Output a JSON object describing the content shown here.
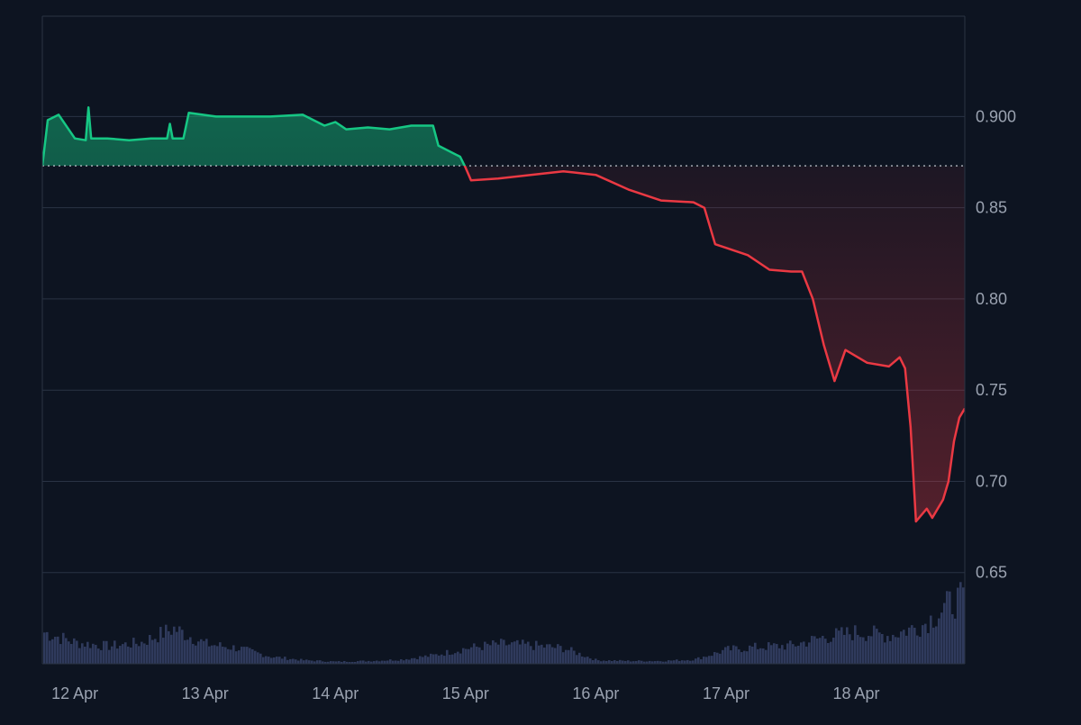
{
  "colors": {
    "background": "#0d1421",
    "grid": "#2a3344",
    "axis_text": "#9aa2b0",
    "up": "#16c784",
    "down": "#ea3943",
    "baseline": "#c9ced6",
    "volume": "#2f3a5c"
  },
  "chart_data": {
    "type": "area",
    "title": "",
    "xlabel": "",
    "ylabel": "",
    "x_range": [
      "2024-04-11 18:00",
      "2024-04-18 20:00"
    ],
    "y_range": [
      0.6,
      0.955
    ],
    "y_ticks": [
      0.65,
      0.7,
      0.75,
      0.8,
      0.85,
      0.9
    ],
    "y_tick_labels": [
      "0.65",
      "0.70",
      "0.75",
      "0.80",
      "0.85",
      "0.900"
    ],
    "x_ticks": [
      "2024-04-12",
      "2024-04-13",
      "2024-04-14",
      "2024-04-15",
      "2024-04-16",
      "2024-04-17",
      "2024-04-18"
    ],
    "x_tick_labels": [
      "12 Apr",
      "13 Apr",
      "14 Apr",
      "15 Apr",
      "16 Apr",
      "17 Apr",
      "18 Apr"
    ],
    "y_axis_position": "right",
    "grid": "horizontal",
    "baseline": 0.873,
    "price_series": {
      "x": [
        "2024-04-11 18:00",
        "2024-04-11 19:00",
        "2024-04-11 21:00",
        "2024-04-12 00:00",
        "2024-04-12 02:00",
        "2024-04-12 02:30",
        "2024-04-12 03:00",
        "2024-04-12 06:00",
        "2024-04-12 10:00",
        "2024-04-12 14:00",
        "2024-04-12 17:00",
        "2024-04-12 17:30",
        "2024-04-12 18:00",
        "2024-04-12 20:00",
        "2024-04-12 21:00",
        "2024-04-13 02:00",
        "2024-04-13 06:00",
        "2024-04-13 12:00",
        "2024-04-13 18:00",
        "2024-04-13 22:00",
        "2024-04-14 00:00",
        "2024-04-14 02:00",
        "2024-04-14 06:00",
        "2024-04-14 10:00",
        "2024-04-14 14:00",
        "2024-04-14 18:00",
        "2024-04-14 19:00",
        "2024-04-14 23:00",
        "2024-04-15 00:00",
        "2024-04-15 01:00",
        "2024-04-15 06:00",
        "2024-04-15 12:00",
        "2024-04-15 18:00",
        "2024-04-16 00:00",
        "2024-04-16 06:00",
        "2024-04-16 12:00",
        "2024-04-16 18:00",
        "2024-04-16 20:00",
        "2024-04-16 22:00",
        "2024-04-17 00:00",
        "2024-04-17 04:00",
        "2024-04-17 08:00",
        "2024-04-17 12:00",
        "2024-04-17 14:00",
        "2024-04-17 16:00",
        "2024-04-17 18:00",
        "2024-04-17 20:00",
        "2024-04-17 22:00",
        "2024-04-18 02:00",
        "2024-04-18 06:00",
        "2024-04-18 08:00",
        "2024-04-18 09:00",
        "2024-04-18 10:00",
        "2024-04-18 11:00",
        "2024-04-18 13:00",
        "2024-04-18 14:00",
        "2024-04-18 16:00",
        "2024-04-18 17:00",
        "2024-04-18 18:00",
        "2024-04-18 19:00",
        "2024-04-18 20:00"
      ],
      "values": [
        0.873,
        0.898,
        0.901,
        0.888,
        0.887,
        0.905,
        0.888,
        0.888,
        0.887,
        0.888,
        0.888,
        0.896,
        0.888,
        0.888,
        0.902,
        0.9,
        0.9,
        0.9,
        0.901,
        0.895,
        0.897,
        0.893,
        0.894,
        0.893,
        0.895,
        0.895,
        0.884,
        0.878,
        0.872,
        0.865,
        0.866,
        0.868,
        0.87,
        0.868,
        0.86,
        0.854,
        0.853,
        0.85,
        0.83,
        0.828,
        0.824,
        0.816,
        0.815,
        0.815,
        0.8,
        0.775,
        0.755,
        0.772,
        0.765,
        0.763,
        0.768,
        0.762,
        0.73,
        0.678,
        0.685,
        0.68,
        0.69,
        0.7,
        0.722,
        0.735,
        0.74
      ]
    },
    "volume_series": {
      "x": [
        "2024-04-11 18:00",
        "2024-04-12 00:00",
        "2024-04-12 06:00",
        "2024-04-12 12:00",
        "2024-04-12 18:00",
        "2024-04-13 00:00",
        "2024-04-13 06:00",
        "2024-04-13 12:00",
        "2024-04-13 18:00",
        "2024-04-14 00:00",
        "2024-04-14 06:00",
        "2024-04-14 12:00",
        "2024-04-14 18:00",
        "2024-04-15 00:00",
        "2024-04-15 06:00",
        "2024-04-15 12:00",
        "2024-04-15 18:00",
        "2024-04-16 00:00",
        "2024-04-16 06:00",
        "2024-04-16 12:00",
        "2024-04-16 18:00",
        "2024-04-17 00:00",
        "2024-04-17 06:00",
        "2024-04-17 12:00",
        "2024-04-17 18:00",
        "2024-04-18 00:00",
        "2024-04-18 06:00",
        "2024-04-18 12:00",
        "2024-04-18 18:00"
      ],
      "values": [
        0.45,
        0.3,
        0.25,
        0.3,
        0.5,
        0.28,
        0.22,
        0.1,
        0.05,
        0.03,
        0.04,
        0.06,
        0.12,
        0.22,
        0.28,
        0.26,
        0.22,
        0.05,
        0.04,
        0.04,
        0.06,
        0.2,
        0.24,
        0.26,
        0.38,
        0.45,
        0.4,
        0.55,
        0.9
      ]
    }
  }
}
